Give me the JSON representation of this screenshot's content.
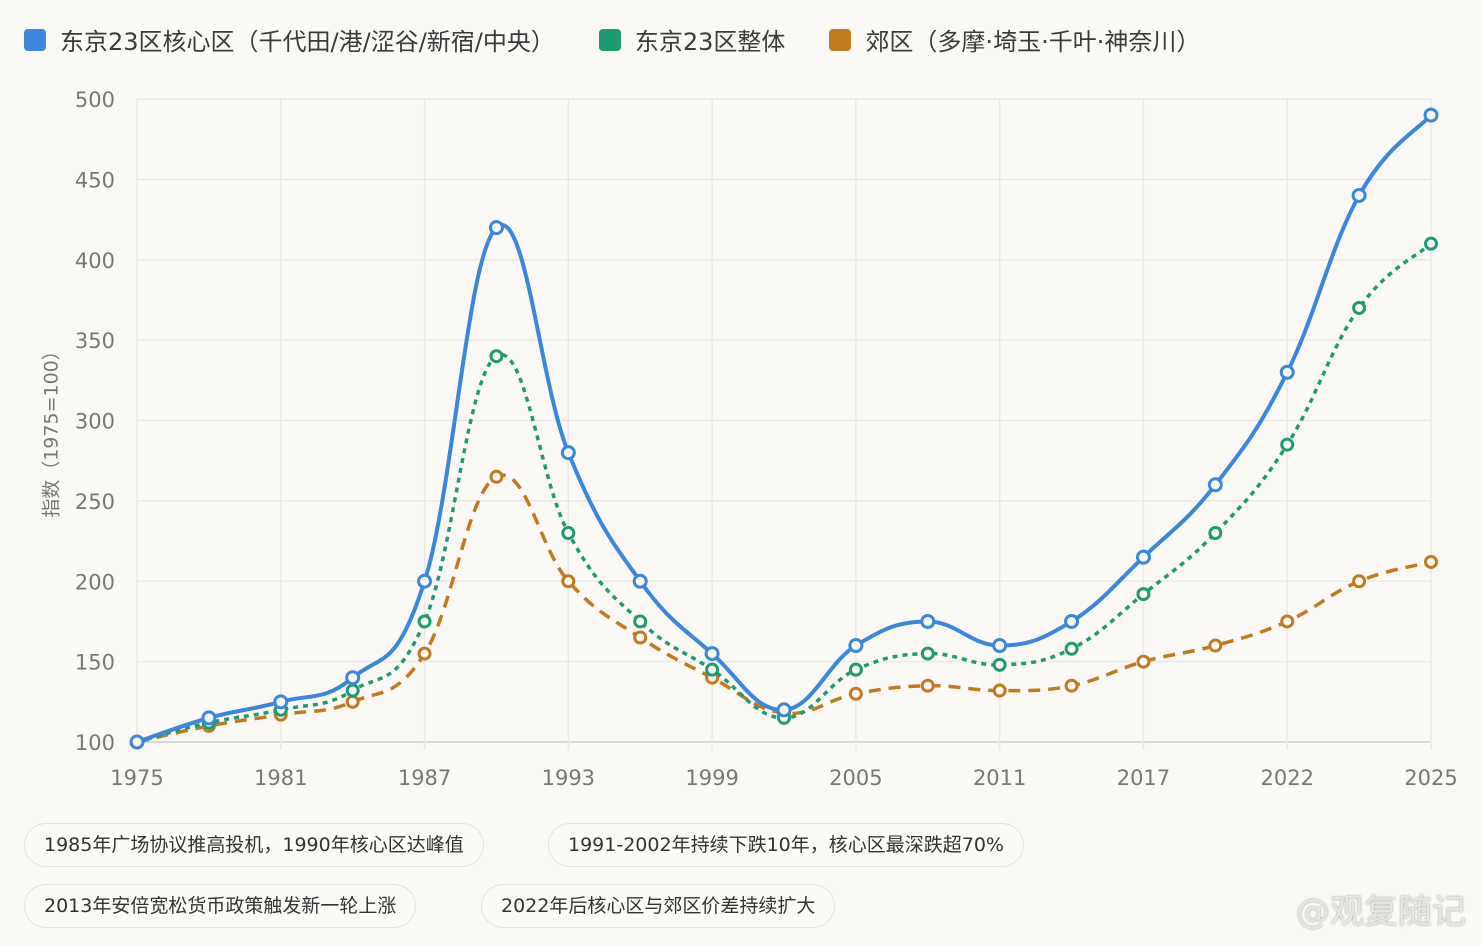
{
  "legend": [
    {
      "label": "东京23区核心区（千代田/港/涩谷/新宿/中央）",
      "color": "#3a87dc"
    },
    {
      "label": "东京23区整体",
      "color": "#1f9a73"
    },
    {
      "label": "郊区（多摩·埼玉·千叶·神奈川）",
      "color": "#c27a1e"
    }
  ],
  "chart_data": {
    "type": "line",
    "ylabel": "指数（1975=100）",
    "xlabel": "",
    "ylim": [
      100,
      500
    ],
    "yticks": [
      100,
      150,
      200,
      250,
      300,
      350,
      400,
      450,
      500
    ],
    "categories": [
      "1975",
      "",
      "1981",
      "",
      "1987",
      "",
      "1993",
      "",
      "1999",
      "",
      "2005",
      "",
      "2011",
      "",
      "2017",
      "",
      "2022",
      "",
      "2025"
    ],
    "grid": true,
    "legend_position": "top",
    "series": [
      {
        "name": "东京23区核心区（千代田/港/涩谷/新宿/中央）",
        "color": "#3a87dc",
        "style": "solid",
        "values": [
          100,
          115,
          125,
          140,
          200,
          420,
          280,
          200,
          155,
          120,
          160,
          175,
          160,
          175,
          215,
          260,
          330,
          440,
          490
        ]
      },
      {
        "name": "东京23区整体",
        "color": "#1f9a73",
        "style": "dotted",
        "values": [
          100,
          112,
          120,
          132,
          175,
          340,
          230,
          175,
          145,
          115,
          145,
          155,
          148,
          158,
          192,
          230,
          285,
          370,
          410
        ]
      },
      {
        "name": "郊区（多摩·埼玉·千叶·神奈川）",
        "color": "#c27a1e",
        "style": "dashed",
        "values": [
          100,
          110,
          117,
          125,
          155,
          265,
          200,
          165,
          140,
          118,
          130,
          135,
          132,
          135,
          150,
          160,
          175,
          200,
          212
        ]
      }
    ]
  },
  "annotations": [
    "1985年广场协议推高投机，1990年核心区达峰值",
    "1991-2002年持续下跌10年，核心区最深跌超70%",
    "2013年安倍宽松货币政策触发新一轮上涨",
    "2022年后核心区与郊区价差持续扩大"
  ],
  "watermark": "@观复随记"
}
